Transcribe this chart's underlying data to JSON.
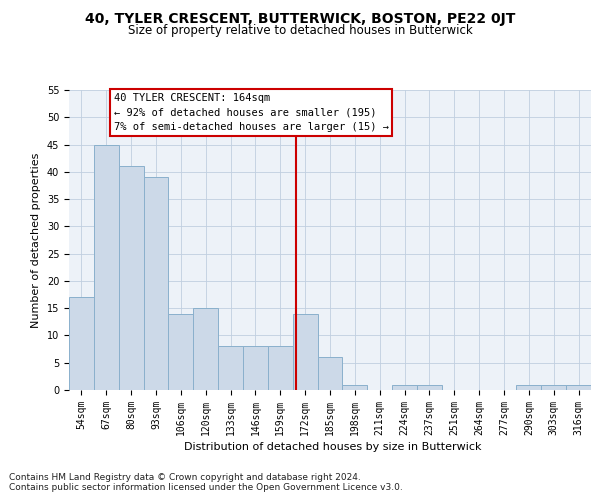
{
  "title": "40, TYLER CRESCENT, BUTTERWICK, BOSTON, PE22 0JT",
  "subtitle": "Size of property relative to detached houses in Butterwick",
  "xlabel": "Distribution of detached houses by size in Butterwick",
  "ylabel": "Number of detached properties",
  "categories": [
    "54sqm",
    "67sqm",
    "80sqm",
    "93sqm",
    "106sqm",
    "120sqm",
    "133sqm",
    "146sqm",
    "159sqm",
    "172sqm",
    "185sqm",
    "198sqm",
    "211sqm",
    "224sqm",
    "237sqm",
    "251sqm",
    "264sqm",
    "277sqm",
    "290sqm",
    "303sqm",
    "316sqm"
  ],
  "values": [
    17,
    45,
    41,
    39,
    14,
    15,
    8,
    8,
    8,
    14,
    6,
    1,
    0,
    1,
    1,
    0,
    0,
    0,
    1,
    1,
    1
  ],
  "bar_color": "#ccd9e8",
  "bar_edge_color": "#8ab0cc",
  "red_line_x": 8.62,
  "annotation_text": "40 TYLER CRESCENT: 164sqm\n← 92% of detached houses are smaller (195)\n7% of semi-detached houses are larger (15) →",
  "annotation_box_color": "#ffffff",
  "annotation_box_edge_color": "#cc0000",
  "footer_text": "Contains HM Land Registry data © Crown copyright and database right 2024.\nContains public sector information licensed under the Open Government Licence v3.0.",
  "ylim": [
    0,
    55
  ],
  "yticks": [
    0,
    5,
    10,
    15,
    20,
    25,
    30,
    35,
    40,
    45,
    50,
    55
  ],
  "background_color": "#edf2f8",
  "grid_color": "#c0cfe0",
  "title_fontsize": 10,
  "subtitle_fontsize": 8.5,
  "xlabel_fontsize": 8,
  "ylabel_fontsize": 8,
  "tick_fontsize": 7,
  "annotation_fontsize": 7.5,
  "footer_fontsize": 6.5
}
